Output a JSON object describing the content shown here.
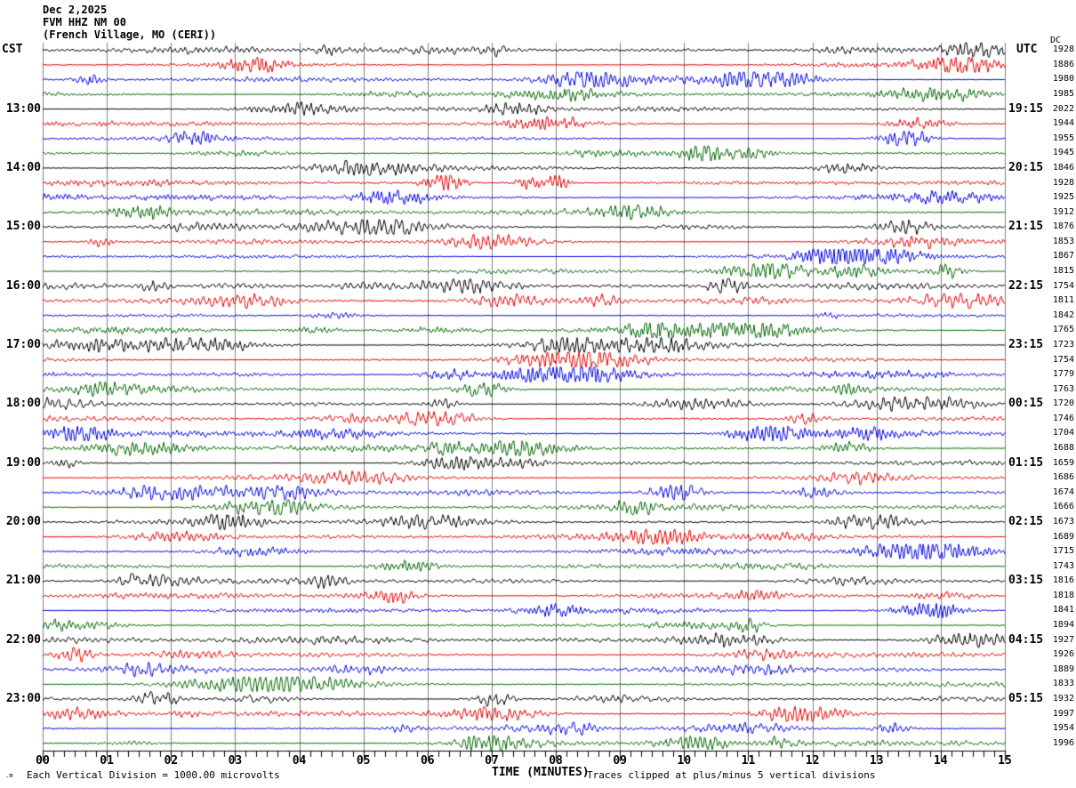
{
  "header": {
    "date": "Dec 2,2025",
    "station": "FVM HHZ NM 00",
    "location": "(French Village, MO (CERI))"
  },
  "left_axis": {
    "header": "CST",
    "hour_labels": [
      "13:00",
      "14:00",
      "15:00",
      "16:00",
      "17:00",
      "18:00",
      "19:00",
      "20:00",
      "21:00",
      "22:00",
      "23:00"
    ],
    "label_rows": [
      4,
      8,
      12,
      16,
      20,
      24,
      28,
      32,
      36,
      40,
      44
    ]
  },
  "right_axis": {
    "header": "UTC",
    "dc_header": "DC",
    "hour_labels": [
      "19:15",
      "20:15",
      "21:15",
      "22:15",
      "23:15",
      "00:15",
      "01:15",
      "02:15",
      "03:15",
      "04:15",
      "05:15"
    ],
    "label_rows": [
      4,
      8,
      12,
      16,
      20,
      24,
      28,
      32,
      36,
      40,
      44
    ],
    "dc_values": [
      1928,
      1886,
      1980,
      1985,
      2022,
      1944,
      1955,
      1945,
      1846,
      1928,
      1925,
      1912,
      1876,
      1853,
      1867,
      1815,
      1754,
      1811,
      1842,
      1765,
      1723,
      1754,
      1779,
      1763,
      1720,
      1746,
      1704,
      1688,
      1659,
      1686,
      1674,
      1666,
      1673,
      1689,
      1715,
      1743,
      1816,
      1818,
      1841,
      1894,
      1927,
      1926,
      1889,
      1833,
      1932,
      1997,
      1954,
      1996
    ]
  },
  "x_axis": {
    "title": "TIME (MINUTES)",
    "minute_labels": [
      "00",
      "01",
      "02",
      "03",
      "04",
      "05",
      "06",
      "07",
      "08",
      "09",
      "10",
      "11",
      "12",
      "13",
      "14",
      "15"
    ],
    "minutes": 15,
    "minor_ticks_per_minute": 5
  },
  "footer": {
    "watermark": ".m",
    "scale_note": "Each Vertical Division = 1000.00 microvolts",
    "clip_note": "Traces clipped at plus/minus 5 vertical divisions"
  },
  "chart": {
    "rows": 48,
    "trace_colors": [
      "#000000",
      "#e00000",
      "#0000dd",
      "#006600"
    ],
    "grid_color": "#808080",
    "axis_color": "#000000",
    "clip_divisions": 5,
    "seed": 987654321
  },
  "chart_data": {
    "type": "line",
    "subtype": "helicorder-seismogram",
    "title": "FVM HHZ NM 00 (French Village, MO (CERI)) Dec 2,2025",
    "xlabel": "TIME (MINUTES)",
    "x_range_minutes": [
      0,
      15
    ],
    "x_tick_labels": [
      "00",
      "01",
      "02",
      "03",
      "04",
      "05",
      "06",
      "07",
      "08",
      "09",
      "10",
      "11",
      "12",
      "13",
      "14",
      "15"
    ],
    "num_rows": 48,
    "row_duration_minutes": 15,
    "rows_per_hour": 4,
    "trace_color_cycle": [
      "black",
      "red",
      "blue",
      "green"
    ],
    "left_time_labels_cst": [
      "13:00",
      "14:00",
      "15:00",
      "16:00",
      "17:00",
      "18:00",
      "19:00",
      "20:00",
      "21:00",
      "22:00",
      "23:00"
    ],
    "right_time_labels_utc": [
      "19:15",
      "20:15",
      "21:15",
      "22:15",
      "23:15",
      "00:15",
      "01:15",
      "02:15",
      "03:15",
      "04:15",
      "05:15"
    ],
    "series": [
      {
        "name": "DC offset per 15-minute row (microvolts)",
        "values": [
          1928,
          1886,
          1980,
          1985,
          2022,
          1944,
          1955,
          1945,
          1846,
          1928,
          1925,
          1912,
          1876,
          1853,
          1867,
          1815,
          1754,
          1811,
          1842,
          1765,
          1723,
          1754,
          1779,
          1763,
          1720,
          1746,
          1704,
          1688,
          1659,
          1686,
          1674,
          1666,
          1673,
          1689,
          1715,
          1743,
          1816,
          1818,
          1841,
          1894,
          1927,
          1926,
          1889,
          1833,
          1932,
          1997,
          1954,
          1996
        ]
      }
    ],
    "scale": "Each Vertical Division = 1000.00 microvolts",
    "clipping": "Traces clipped at plus/minus 5 vertical divisions",
    "legend": "none",
    "grid": "vertical minute lines on"
  }
}
